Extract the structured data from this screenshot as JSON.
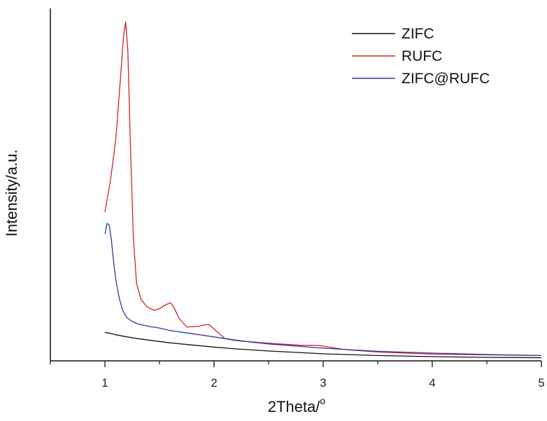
{
  "chart_data": {
    "type": "line",
    "xlabel": "2Theta/",
    "xlabel_sup": "o",
    "ylabel": "Intensity/a.u.",
    "xlim": [
      0.5,
      5
    ],
    "ylim": [
      0,
      100
    ],
    "x_ticks": [
      1,
      2,
      3,
      4,
      5
    ],
    "x_tick_labels": [
      "1",
      "2",
      "3",
      "4",
      "5"
    ],
    "y_tick_labels": [],
    "legend_position": "top-right",
    "grid": false,
    "series": [
      {
        "name": "ZIFC",
        "color": "#111111",
        "x": [
          1.0,
          1.05,
          1.1,
          1.2,
          1.3,
          1.4,
          1.5,
          1.6,
          1.8,
          2.0,
          2.2,
          2.5,
          3.0,
          3.5,
          4.0,
          4.5,
          5.0
        ],
        "y": [
          8.1,
          7.8,
          7.4,
          6.8,
          6.3,
          5.9,
          5.5,
          5.1,
          4.5,
          3.9,
          3.4,
          2.8,
          2.0,
          1.5,
          1.2,
          1.0,
          0.9
        ]
      },
      {
        "name": "RUFC",
        "color": "#d42027",
        "x": [
          1.0,
          1.05,
          1.1,
          1.14,
          1.17,
          1.19,
          1.21,
          1.23,
          1.26,
          1.29,
          1.33,
          1.38,
          1.45,
          1.5,
          1.55,
          1.6,
          1.63,
          1.68,
          1.75,
          1.85,
          1.95,
          2.02,
          2.1,
          2.3,
          2.5,
          2.8,
          2.95,
          3.2,
          3.5,
          4.0,
          4.5,
          5.0
        ],
        "y": [
          42.2,
          51.0,
          63.0,
          79.0,
          92.0,
          96.2,
          88.0,
          65.0,
          35.0,
          22.0,
          17.5,
          15.5,
          14.3,
          14.8,
          15.8,
          16.5,
          15.3,
          12.0,
          9.6,
          9.8,
          10.4,
          8.5,
          6.3,
          5.5,
          5.0,
          4.4,
          4.4,
          3.2,
          2.5,
          1.9,
          1.7,
          1.5
        ]
      },
      {
        "name": "ZIFC@RUFC",
        "color": "#2e3a9f",
        "x": [
          1.0,
          1.02,
          1.04,
          1.06,
          1.08,
          1.1,
          1.13,
          1.16,
          1.2,
          1.25,
          1.3,
          1.4,
          1.5,
          1.6,
          1.8,
          2.0,
          2.2,
          2.5,
          3.0,
          3.5,
          4.0,
          4.5,
          5.0
        ],
        "y": [
          36.0,
          39.0,
          38.5,
          34.0,
          28.0,
          23.0,
          18.0,
          14.5,
          12.3,
          11.2,
          10.5,
          9.8,
          9.3,
          8.6,
          7.7,
          6.8,
          5.8,
          4.8,
          3.6,
          2.7,
          2.2,
          1.8,
          1.5
        ]
      }
    ]
  }
}
